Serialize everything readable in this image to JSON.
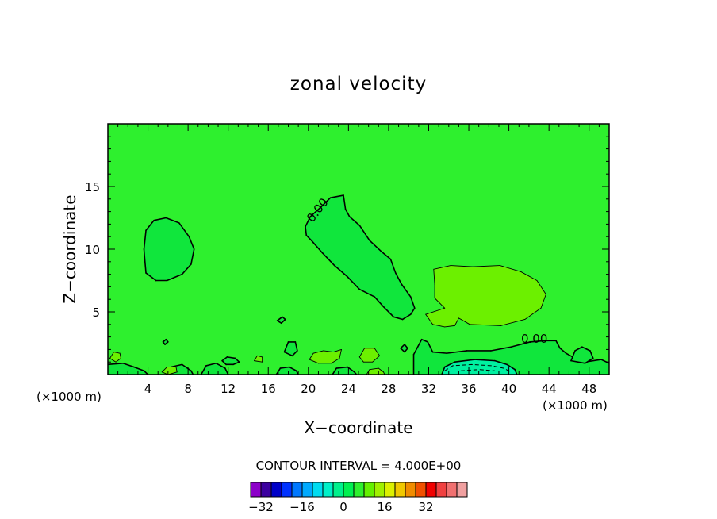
{
  "chart_data": {
    "type": "heatmap",
    "title": "zonal velocity",
    "xlabel": "X−coordinate",
    "ylabel": "Z−coordinate",
    "x_unit_label": "(×1000 m)",
    "y_unit_label": "(×1000 m)",
    "xlim": [
      0,
      50
    ],
    "ylim": [
      0,
      20
    ],
    "x_ticks": [
      4,
      8,
      12,
      16,
      20,
      24,
      28,
      32,
      36,
      40,
      44,
      48
    ],
    "y_ticks": [
      5,
      10,
      15
    ],
    "contour_interval_label": "CONTOUR INTERVAL = 4.000E+00",
    "contour_label": "0.00",
    "background_color": "#2ef02e",
    "colorbar": {
      "min": -36,
      "step": 4,
      "tick_values": [
        -32,
        -16,
        0,
        16,
        32
      ],
      "tick_labels": [
        "−32",
        "−16",
        "0",
        "16",
        "32"
      ],
      "colors": [
        "#8c00c8",
        "#3c00a0",
        "#0000c8",
        "#0032ff",
        "#0078ff",
        "#00aaff",
        "#00dcf0",
        "#00f0c8",
        "#00f08c",
        "#00f050",
        "#2ef02e",
        "#64f000",
        "#a0f000",
        "#dcf000",
        "#f0c800",
        "#f08c00",
        "#f05000",
        "#f00000",
        "#f04040",
        "#f07070",
        "#f0a0a0"
      ]
    },
    "regions": [
      {
        "value": 0,
        "level": "0 to 4",
        "color": "#2ef02e",
        "points": [
          [
            0,
            0
          ],
          [
            50,
            0
          ],
          [
            50,
            20
          ],
          [
            0,
            20
          ]
        ]
      },
      {
        "value": -2,
        "level": "-4 to 0",
        "color": "#10e63c",
        "points": [
          [
            3.6,
            10
          ],
          [
            3.8,
            11.5
          ],
          [
            4.6,
            12.3
          ],
          [
            5.8,
            12.5
          ],
          [
            7.1,
            12.1
          ],
          [
            8.1,
            11
          ],
          [
            8.6,
            10
          ],
          [
            8.3,
            8.8
          ],
          [
            7.4,
            8
          ],
          [
            5.9,
            7.5
          ],
          [
            4.8,
            7.5
          ],
          [
            3.8,
            8.1
          ],
          [
            3.7,
            9
          ]
        ]
      },
      {
        "value": -2,
        "level": "-4 to 0",
        "color": "#10e63c",
        "points": [
          [
            19.7,
            11.8
          ],
          [
            20.2,
            12.6
          ],
          [
            21.3,
            13.4
          ],
          [
            22.2,
            14.1
          ],
          [
            23.5,
            14.3
          ],
          [
            23.7,
            13.2
          ],
          [
            24.1,
            12.6
          ],
          [
            25.1,
            11.9
          ],
          [
            26.1,
            10.7
          ],
          [
            27.3,
            9.8
          ],
          [
            28.2,
            9.2
          ],
          [
            28.7,
            8.1
          ],
          [
            29.3,
            7.2
          ],
          [
            30.2,
            6.2
          ],
          [
            30.6,
            5.3
          ],
          [
            30.2,
            4.8
          ],
          [
            29.4,
            4.4
          ],
          [
            28.5,
            4.6
          ],
          [
            27.5,
            5.4
          ],
          [
            26.6,
            6.2
          ],
          [
            25.1,
            6.8
          ],
          [
            23.9,
            7.8
          ],
          [
            22.6,
            8.7
          ],
          [
            21.4,
            9.7
          ],
          [
            20.3,
            10.7
          ],
          [
            19.8,
            11.1
          ]
        ]
      },
      {
        "value": 2,
        "level": "4 to 8",
        "color": "#6cf000",
        "points": [
          [
            32.5,
            8.4
          ],
          [
            34.2,
            8.7
          ],
          [
            36.4,
            8.6
          ],
          [
            39.1,
            8.7
          ],
          [
            41.2,
            8.2
          ],
          [
            42.8,
            7.5
          ],
          [
            43.7,
            6.4
          ],
          [
            43.2,
            5.3
          ],
          [
            41.6,
            4.4
          ],
          [
            39.2,
            3.9
          ],
          [
            36.1,
            4.0
          ],
          [
            35.0,
            4.5
          ],
          [
            34.6,
            3.9
          ],
          [
            33.6,
            3.8
          ],
          [
            32.4,
            4.0
          ],
          [
            31.7,
            4.8
          ],
          [
            33.6,
            5.3
          ],
          [
            32.6,
            6.1
          ],
          [
            32.6,
            7.2
          ]
        ]
      },
      {
        "value": -2,
        "level": "-4 to 0",
        "color": "#10e63c",
        "points": [
          [
            30.5,
            0
          ],
          [
            30.5,
            1.6
          ],
          [
            31.3,
            2.8
          ],
          [
            31.9,
            2.6
          ],
          [
            32.4,
            1.8
          ],
          [
            33.8,
            1.7
          ],
          [
            35.8,
            1.9
          ],
          [
            38.2,
            1.9
          ],
          [
            40.2,
            2.2
          ],
          [
            42.1,
            2.6
          ],
          [
            43.6,
            2.7
          ],
          [
            44.7,
            2.7
          ],
          [
            45.1,
            2.1
          ],
          [
            45.7,
            1.7
          ],
          [
            46.6,
            1.3
          ],
          [
            47.6,
            1.0
          ],
          [
            49.2,
            1.2
          ],
          [
            50,
            0.9
          ],
          [
            50,
            0
          ]
        ]
      },
      {
        "value": -6,
        "level": "-8 to -4",
        "color": "#00f0a0",
        "points": [
          [
            33.3,
            0
          ],
          [
            33.6,
            0.6
          ],
          [
            34.6,
            1.0
          ],
          [
            36.6,
            1.2
          ],
          [
            38.6,
            1.1
          ],
          [
            39.8,
            0.8
          ],
          [
            40.6,
            0.4
          ],
          [
            40.8,
            0
          ]
        ]
      },
      {
        "value": -2,
        "level": "-4 to 0",
        "color": "#10e63c",
        "points": [
          [
            0,
            0
          ],
          [
            0,
            0.8
          ],
          [
            1.5,
            0.9
          ],
          [
            2.6,
            0.6
          ],
          [
            3.6,
            0.3
          ],
          [
            4.0,
            0
          ]
        ]
      },
      {
        "value": -2,
        "level": "-4 to 0",
        "color": "#10e63c",
        "points": [
          [
            5.9,
            0
          ],
          [
            6.3,
            0.6
          ],
          [
            7.4,
            0.8
          ],
          [
            8.3,
            0.3
          ],
          [
            8.5,
            0
          ]
        ]
      },
      {
        "value": -2,
        "level": "-4 to 0",
        "color": "#10e63c",
        "points": [
          [
            9.3,
            0
          ],
          [
            9.8,
            0.7
          ],
          [
            10.8,
            0.9
          ],
          [
            11.7,
            0.5
          ],
          [
            12.0,
            0
          ]
        ]
      },
      {
        "value": -2,
        "level": "-4 to 0",
        "color": "#10e63c",
        "points": [
          [
            11.4,
            1.1
          ],
          [
            11.9,
            1.4
          ],
          [
            12.7,
            1.3
          ],
          [
            13.1,
            1.0
          ],
          [
            12.5,
            0.8
          ],
          [
            11.8,
            0.8
          ]
        ]
      },
      {
        "value": -2,
        "level": "-4 to 0",
        "color": "#10e63c",
        "points": [
          [
            16.8,
            0
          ],
          [
            17.2,
            0.5
          ],
          [
            18.1,
            0.6
          ],
          [
            18.8,
            0.3
          ],
          [
            19.0,
            0
          ]
        ]
      },
      {
        "value": -2,
        "level": "-4 to 0",
        "color": "#10e63c",
        "points": [
          [
            22.4,
            0
          ],
          [
            22.8,
            0.5
          ],
          [
            23.9,
            0.6
          ],
          [
            24.6,
            0.2
          ],
          [
            24.8,
            0
          ]
        ]
      },
      {
        "value": -2,
        "level": "-4 to 0",
        "color": "#10e63c",
        "points": [
          [
            17.6,
            1.8
          ],
          [
            18.0,
            2.6
          ],
          [
            18.7,
            2.6
          ],
          [
            18.9,
            1.9
          ],
          [
            18.4,
            1.5
          ]
        ]
      },
      {
        "value": -2,
        "level": "-4 to 0",
        "color": "#10e63c",
        "points": [
          [
            46.2,
            1.1
          ],
          [
            46.6,
            1.9
          ],
          [
            47.3,
            2.2
          ],
          [
            48.1,
            1.9
          ],
          [
            48.4,
            1.3
          ],
          [
            47.6,
            0.9
          ]
        ]
      },
      {
        "value": 2,
        "level": "4 to 8",
        "color": "#6cf000",
        "points": [
          [
            0.2,
            1.3
          ],
          [
            0.6,
            1.8
          ],
          [
            1.2,
            1.7
          ],
          [
            1.3,
            1.3
          ],
          [
            0.8,
            1.0
          ]
        ]
      },
      {
        "value": 2,
        "level": "4 to 8",
        "color": "#6cf000",
        "points": [
          [
            20.1,
            1.2
          ],
          [
            20.5,
            1.7
          ],
          [
            21.5,
            1.9
          ],
          [
            22.5,
            1.8
          ],
          [
            23.3,
            2.0
          ],
          [
            23.1,
            1.3
          ],
          [
            22.3,
            0.9
          ],
          [
            21.0,
            0.9
          ]
        ]
      },
      {
        "value": 2,
        "level": "4 to 8",
        "color": "#6cf000",
        "points": [
          [
            25.1,
            1.4
          ],
          [
            25.6,
            2.1
          ],
          [
            26.6,
            2.1
          ],
          [
            27.1,
            1.5
          ],
          [
            26.4,
            1.0
          ],
          [
            25.5,
            1.0
          ]
        ]
      },
      {
        "value": 2,
        "level": "4 to 8",
        "color": "#6cf000",
        "points": [
          [
            25.8,
            0
          ],
          [
            26.1,
            0.4
          ],
          [
            27.0,
            0.5
          ],
          [
            27.5,
            0.2
          ],
          [
            27.6,
            0
          ]
        ]
      },
      {
        "value": 2,
        "level": "4 to 8",
        "color": "#6cf000",
        "points": [
          [
            14.6,
            1.1
          ],
          [
            14.9,
            1.5
          ],
          [
            15.4,
            1.4
          ],
          [
            15.4,
            1.0
          ]
        ]
      },
      {
        "value": 2,
        "level": "4 to 8",
        "color": "#6cf000",
        "points": [
          [
            5.4,
            0.2
          ],
          [
            5.9,
            0.6
          ],
          [
            6.8,
            0.6
          ],
          [
            6.9,
            0.2
          ],
          [
            6.0,
            0.0
          ]
        ]
      },
      {
        "value": -2,
        "level": "-4 to 0",
        "color": "#10e63c",
        "points": [
          [
            16.9,
            4.3
          ],
          [
            17.4,
            4.6
          ],
          [
            17.7,
            4.4
          ],
          [
            17.3,
            4.1
          ]
        ]
      },
      {
        "value": -2,
        "level": "-4 to 0",
        "color": "#10e63c",
        "points": [
          [
            29.2,
            2.1
          ],
          [
            29.6,
            2.4
          ],
          [
            29.9,
            2.1
          ],
          [
            29.6,
            1.8
          ]
        ]
      },
      {
        "value": -2,
        "level": "-4 to 0",
        "color": "#10e63c",
        "points": [
          [
            5.5,
            2.6
          ],
          [
            5.8,
            2.8
          ],
          [
            6.0,
            2.6
          ],
          [
            5.7,
            2.4
          ]
        ]
      }
    ],
    "dashed_contours": [
      [
        [
          33.6,
          0.3
        ],
        [
          34.4,
          0.7
        ],
        [
          36.3,
          0.8
        ],
        [
          38.3,
          0.7
        ],
        [
          39.5,
          0.5
        ],
        [
          40.2,
          0.2
        ]
      ],
      [
        [
          35.2,
          0.3
        ],
        [
          37.0,
          0.4
        ],
        [
          38.6,
          0.3
        ]
      ]
    ]
  }
}
